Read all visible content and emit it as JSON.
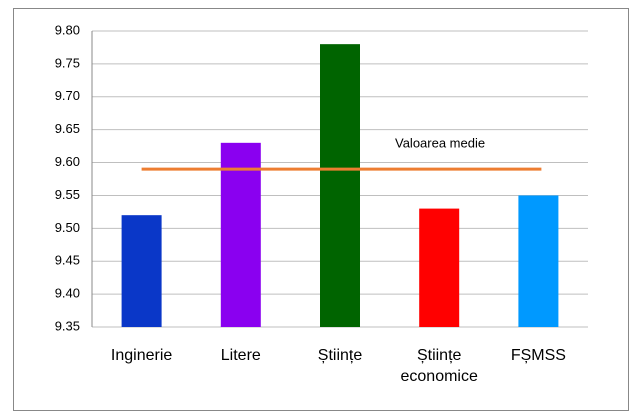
{
  "chart_data": {
    "type": "bar",
    "categories": [
      "Inginerie",
      "Litere",
      "Științe",
      "Științe economice",
      "FȘMSS"
    ],
    "values": [
      9.52,
      9.63,
      9.78,
      9.53,
      9.55
    ],
    "colors": [
      "#0a37c8",
      "#8a00f0",
      "#006400",
      "#ff0000",
      "#0099ff"
    ],
    "ylim": [
      9.35,
      9.8
    ],
    "yticks": [
      9.35,
      {
        "value": 9.4,
        "label": "9.40"
      },
      9.45,
      {
        "value": 9.5,
        "label": "9.50"
      },
      9.55,
      {
        "value": 9.6,
        "label": "9.60"
      },
      9.65,
      {
        "value": 9.7,
        "label": "9.70"
      },
      9.75,
      {
        "value": 9.8,
        "label": "9.80"
      }
    ],
    "grid": true,
    "reference_line": {
      "value": 9.59,
      "label": "Valoarea medie",
      "color": "#ed7d31"
    }
  }
}
